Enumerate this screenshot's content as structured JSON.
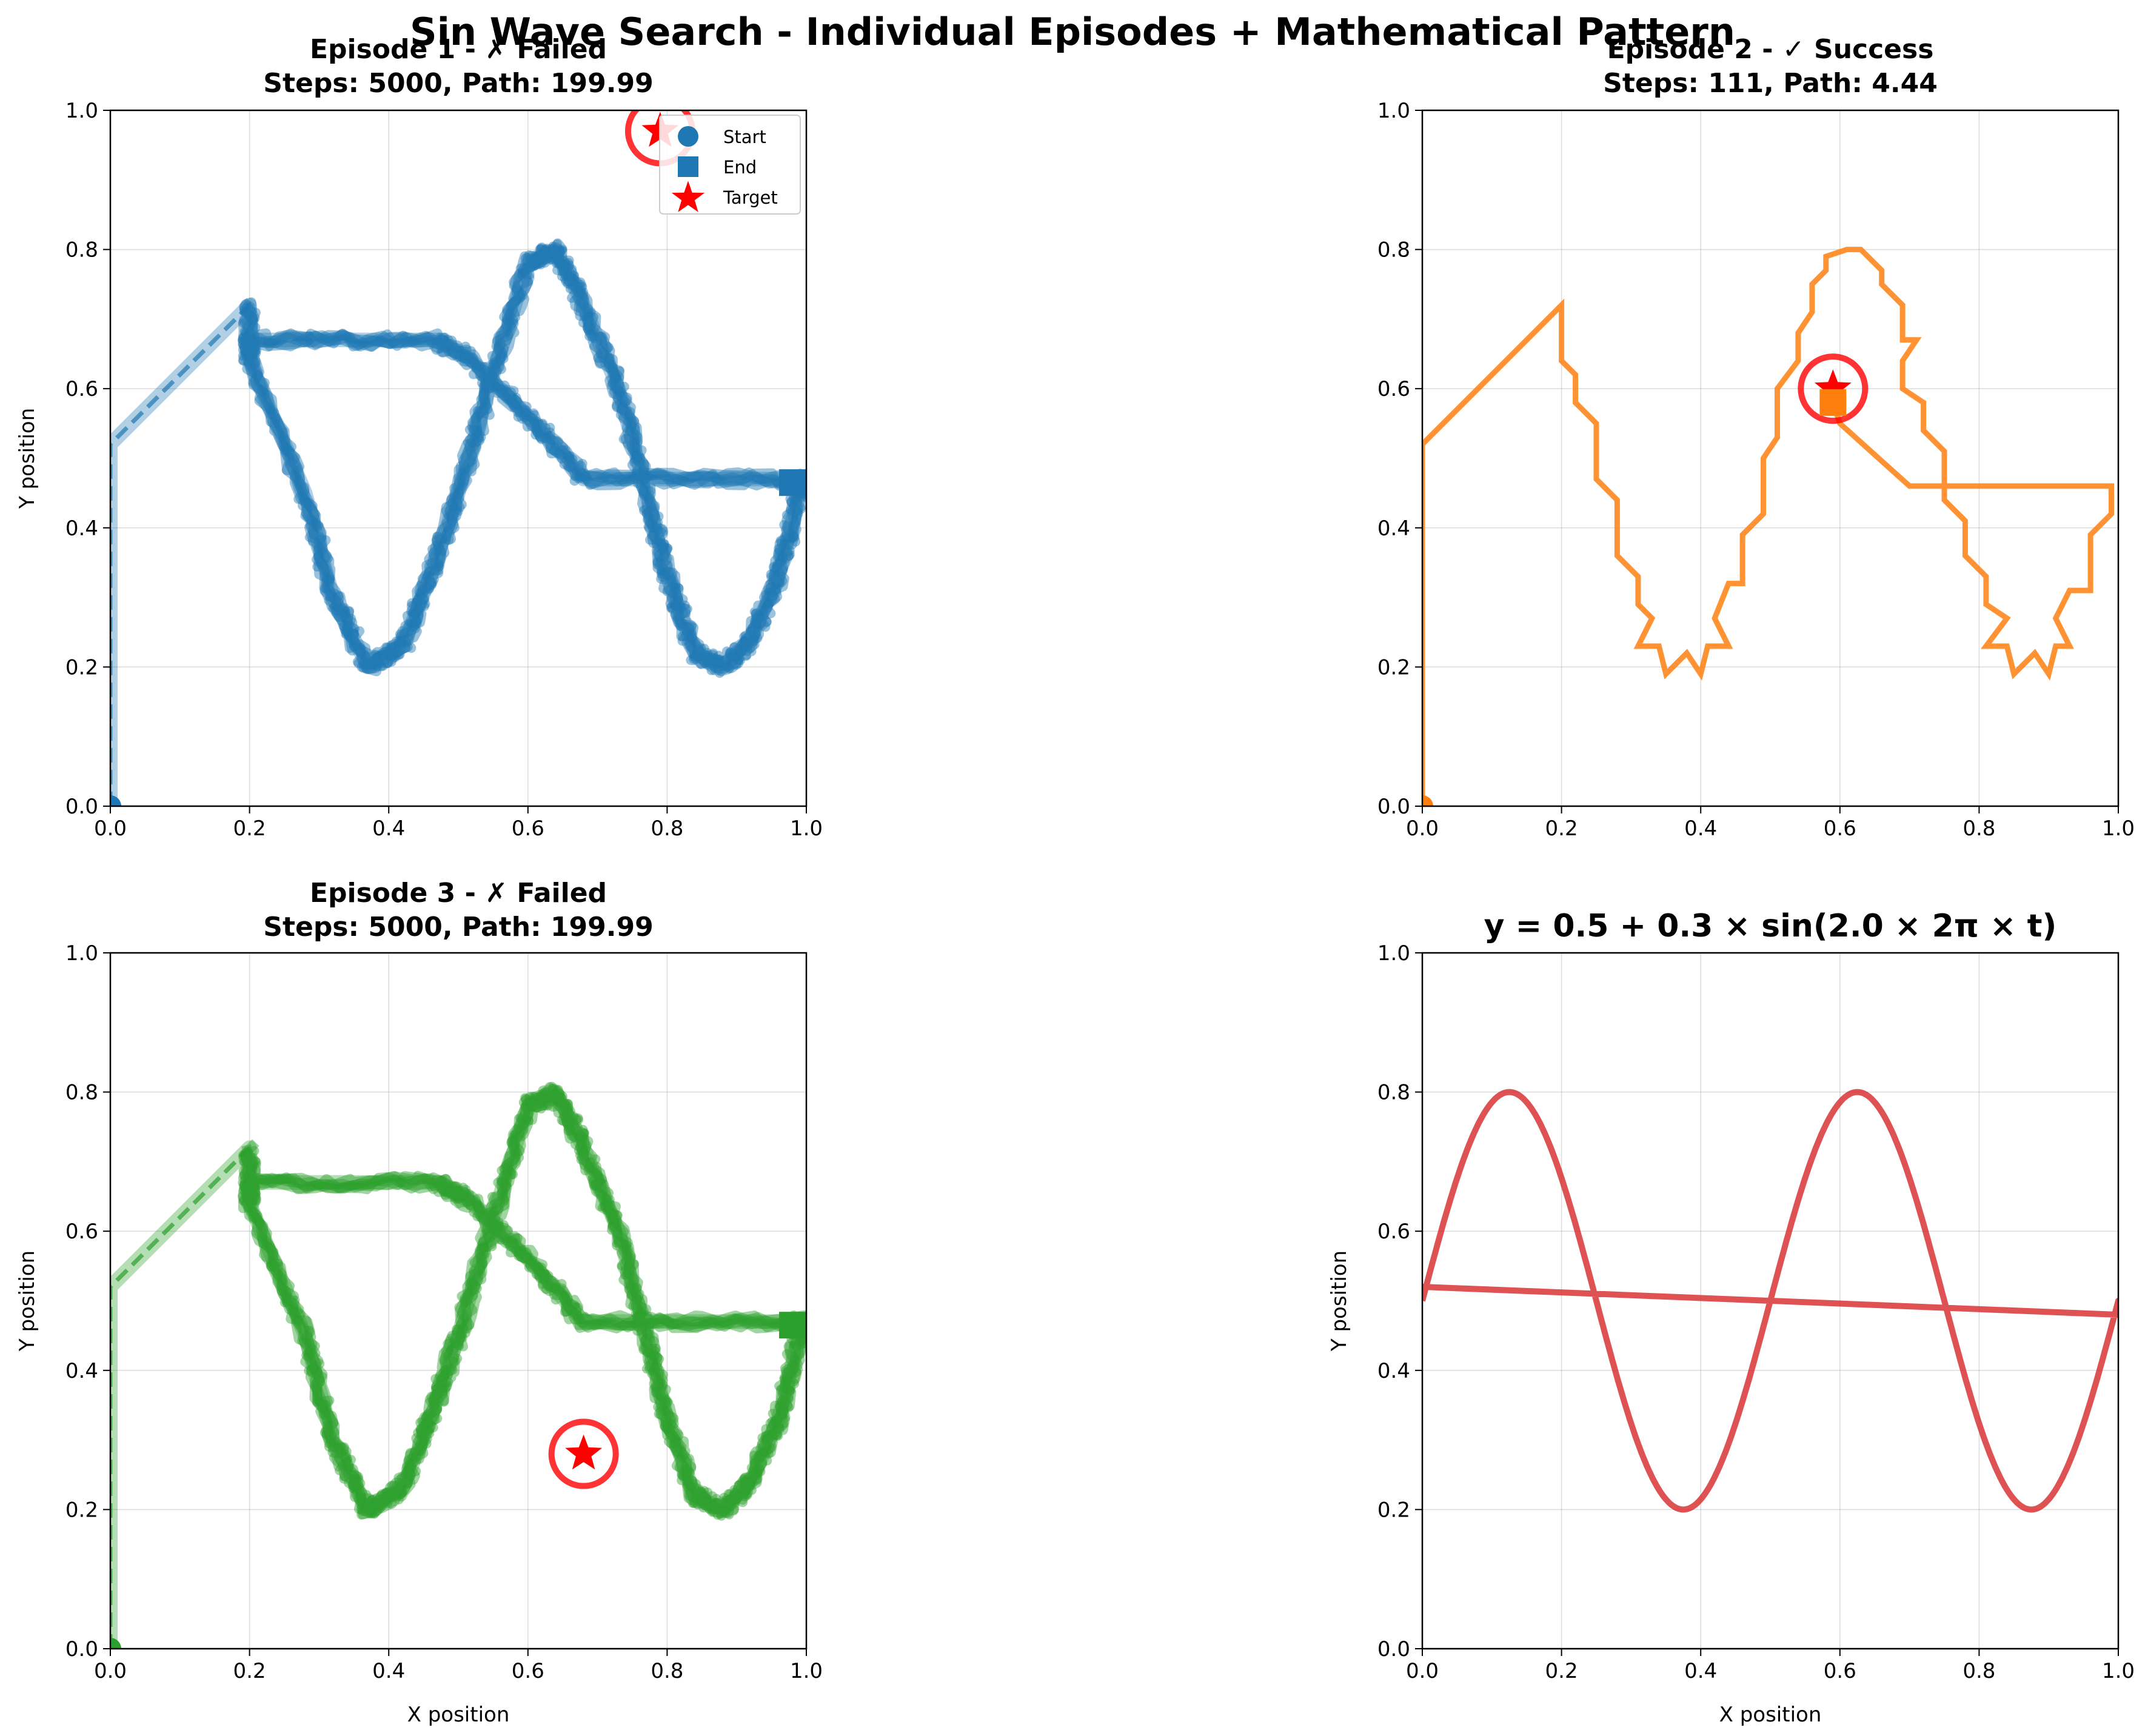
{
  "suptitle": "Sin Wave Search - Individual Episodes + Mathematical Pattern",
  "colors": {
    "episode1": "#1f77b4",
    "episode2": "#ff7f0e",
    "episode3": "#2ca02c",
    "pattern": "#d62728",
    "target": "#ff0000"
  },
  "legend": {
    "placement": "upper right",
    "entries": [
      "Start",
      "End",
      "Target"
    ]
  },
  "chart_data": [
    {
      "type": "line",
      "title": "Episode 1 - ✗ Failed\nSteps: 5000, Path: 199.99",
      "xlabel": "",
      "ylabel": "Y position",
      "xlim": [
        0,
        1
      ],
      "ylim": [
        0,
        1
      ],
      "xticks": [
        "0.0",
        "0.2",
        "0.4",
        "0.6",
        "0.8",
        "1.0"
      ],
      "yticks": [
        "0.0",
        "0.2",
        "0.4",
        "0.6",
        "0.8",
        "1.0"
      ],
      "grid": true,
      "color_key": "episode1",
      "path_style": "noisy-thick",
      "start": [
        0.0,
        0.0
      ],
      "end": [
        0.98,
        0.465
      ],
      "target": [
        0.79,
        0.97
      ],
      "path": [
        [
          0.0,
          0.0
        ],
        [
          0.0,
          0.52
        ],
        [
          0.2,
          0.72
        ],
        [
          0.2,
          0.64
        ],
        [
          0.28,
          0.45
        ],
        [
          0.32,
          0.3
        ],
        [
          0.37,
          0.2
        ],
        [
          0.42,
          0.23
        ],
        [
          0.46,
          0.33
        ],
        [
          0.5,
          0.45
        ],
        [
          0.55,
          0.62
        ],
        [
          0.6,
          0.78
        ],
        [
          0.64,
          0.8
        ],
        [
          0.68,
          0.72
        ],
        [
          0.73,
          0.6
        ],
        [
          0.77,
          0.45
        ],
        [
          0.8,
          0.33
        ],
        [
          0.84,
          0.22
        ],
        [
          0.88,
          0.2
        ],
        [
          0.92,
          0.24
        ],
        [
          0.96,
          0.33
        ],
        [
          0.99,
          0.45
        ],
        [
          0.99,
          0.47
        ],
        [
          0.68,
          0.47
        ],
        [
          0.6,
          0.56
        ],
        [
          0.52,
          0.64
        ],
        [
          0.47,
          0.67
        ],
        [
          0.2,
          0.67
        ],
        [
          0.2,
          0.64
        ]
      ]
    },
    {
      "type": "line",
      "title": "Episode 2 - ✓ Success\nSteps: 111, Path: 4.44",
      "xlabel": "",
      "ylabel": "",
      "xlim": [
        0,
        1
      ],
      "ylim": [
        0,
        1
      ],
      "xticks": [
        "0.0",
        "0.2",
        "0.4",
        "0.6",
        "0.8",
        "1.0"
      ],
      "yticks": [
        "0.0",
        "0.2",
        "0.4",
        "0.6",
        "0.8",
        "1.0"
      ],
      "grid": true,
      "color_key": "episode2",
      "path_style": "clean",
      "start": [
        0.0,
        0.0
      ],
      "end": [
        0.59,
        0.58
      ],
      "target": [
        0.59,
        0.6
      ],
      "path": [
        [
          0.0,
          0.0
        ],
        [
          0.0,
          0.52
        ],
        [
          0.2,
          0.72
        ],
        [
          0.2,
          0.64
        ],
        [
          0.22,
          0.62
        ],
        [
          0.22,
          0.58
        ],
        [
          0.25,
          0.55
        ],
        [
          0.25,
          0.47
        ],
        [
          0.28,
          0.44
        ],
        [
          0.28,
          0.36
        ],
        [
          0.31,
          0.33
        ],
        [
          0.31,
          0.29
        ],
        [
          0.33,
          0.27
        ],
        [
          0.31,
          0.23
        ],
        [
          0.34,
          0.23
        ],
        [
          0.35,
          0.19
        ],
        [
          0.38,
          0.22
        ],
        [
          0.4,
          0.19
        ],
        [
          0.41,
          0.23
        ],
        [
          0.44,
          0.23
        ],
        [
          0.42,
          0.27
        ],
        [
          0.44,
          0.32
        ],
        [
          0.46,
          0.32
        ],
        [
          0.46,
          0.39
        ],
        [
          0.49,
          0.42
        ],
        [
          0.49,
          0.5
        ],
        [
          0.51,
          0.53
        ],
        [
          0.51,
          0.6
        ],
        [
          0.54,
          0.64
        ],
        [
          0.54,
          0.68
        ],
        [
          0.56,
          0.71
        ],
        [
          0.56,
          0.75
        ],
        [
          0.58,
          0.77
        ],
        [
          0.58,
          0.79
        ],
        [
          0.61,
          0.8
        ],
        [
          0.63,
          0.8
        ],
        [
          0.66,
          0.77
        ],
        [
          0.66,
          0.75
        ],
        [
          0.69,
          0.72
        ],
        [
          0.69,
          0.67
        ],
        [
          0.71,
          0.67
        ],
        [
          0.69,
          0.64
        ],
        [
          0.69,
          0.6
        ],
        [
          0.72,
          0.58
        ],
        [
          0.72,
          0.54
        ],
        [
          0.75,
          0.51
        ],
        [
          0.75,
          0.44
        ],
        [
          0.78,
          0.41
        ],
        [
          0.78,
          0.36
        ],
        [
          0.81,
          0.33
        ],
        [
          0.81,
          0.29
        ],
        [
          0.84,
          0.27
        ],
        [
          0.81,
          0.23
        ],
        [
          0.84,
          0.23
        ],
        [
          0.85,
          0.19
        ],
        [
          0.88,
          0.22
        ],
        [
          0.9,
          0.19
        ],
        [
          0.91,
          0.23
        ],
        [
          0.93,
          0.23
        ],
        [
          0.91,
          0.27
        ],
        [
          0.93,
          0.31
        ],
        [
          0.96,
          0.31
        ],
        [
          0.96,
          0.39
        ],
        [
          0.99,
          0.42
        ],
        [
          0.99,
          0.46
        ],
        [
          0.7,
          0.46
        ],
        [
          0.6,
          0.55
        ],
        [
          0.59,
          0.58
        ]
      ]
    },
    {
      "type": "line",
      "title": "Episode 3 - ✗ Failed\nSteps: 5000, Path: 199.99",
      "xlabel": "X position",
      "ylabel": "Y position",
      "xlim": [
        0,
        1
      ],
      "ylim": [
        0,
        1
      ],
      "xticks": [
        "0.0",
        "0.2",
        "0.4",
        "0.6",
        "0.8",
        "1.0"
      ],
      "yticks": [
        "0.0",
        "0.2",
        "0.4",
        "0.6",
        "0.8",
        "1.0"
      ],
      "grid": true,
      "color_key": "episode3",
      "path_style": "noisy-thick",
      "start": [
        0.0,
        0.0
      ],
      "end": [
        0.98,
        0.465
      ],
      "target": [
        0.68,
        0.28
      ],
      "path": [
        [
          0.0,
          0.0
        ],
        [
          0.0,
          0.52
        ],
        [
          0.2,
          0.72
        ],
        [
          0.2,
          0.64
        ],
        [
          0.28,
          0.45
        ],
        [
          0.32,
          0.3
        ],
        [
          0.37,
          0.2
        ],
        [
          0.42,
          0.23
        ],
        [
          0.46,
          0.33
        ],
        [
          0.5,
          0.45
        ],
        [
          0.55,
          0.62
        ],
        [
          0.6,
          0.78
        ],
        [
          0.64,
          0.8
        ],
        [
          0.68,
          0.72
        ],
        [
          0.73,
          0.6
        ],
        [
          0.77,
          0.45
        ],
        [
          0.8,
          0.33
        ],
        [
          0.84,
          0.22
        ],
        [
          0.88,
          0.2
        ],
        [
          0.92,
          0.24
        ],
        [
          0.96,
          0.33
        ],
        [
          0.99,
          0.45
        ],
        [
          0.99,
          0.47
        ],
        [
          0.68,
          0.47
        ],
        [
          0.6,
          0.56
        ],
        [
          0.52,
          0.64
        ],
        [
          0.47,
          0.67
        ],
        [
          0.2,
          0.67
        ],
        [
          0.2,
          0.64
        ]
      ]
    },
    {
      "type": "line",
      "title": "y = 0.5 + 0.3 × sin(2.0 × 2π × t)",
      "xlabel": "X position",
      "ylabel": "Y position",
      "xlim": [
        0,
        1
      ],
      "ylim": [
        0,
        1
      ],
      "xticks": [
        "0.0",
        "0.2",
        "0.4",
        "0.6",
        "0.8",
        "1.0"
      ],
      "yticks": [
        "0.0",
        "0.2",
        "0.4",
        "0.6",
        "0.8",
        "1.0"
      ],
      "grid": true,
      "color_key": "pattern",
      "path_style": "clean",
      "function": {
        "offset": 0.5,
        "amplitude": 0.3,
        "frequency": 2.0
      },
      "diagonal_return": [
        [
          1.0,
          0.48
        ],
        [
          0.0,
          0.52
        ]
      ]
    }
  ]
}
